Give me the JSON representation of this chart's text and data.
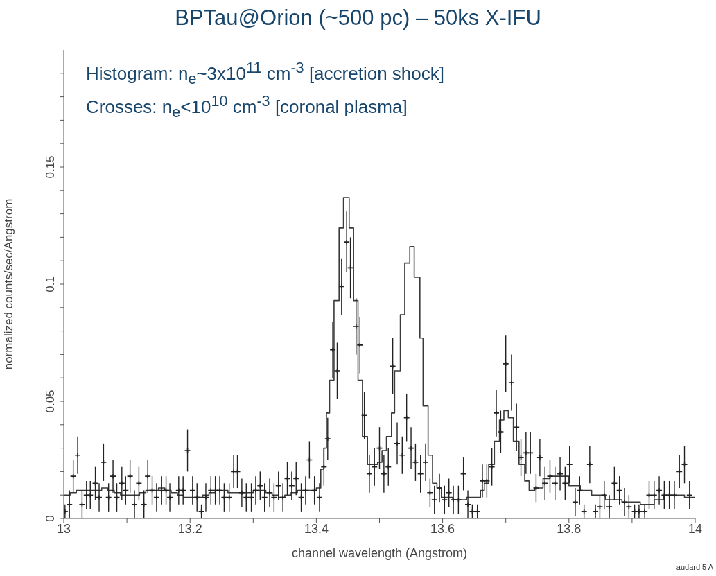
{
  "chart_data": {
    "type": "step",
    "title": "BPTau@Orion (~500 pc) – 50ks X-IFU",
    "xlabel": "channel wavelength (Angstrom)",
    "ylabel": "normalized counts/sec/Angstrom",
    "annotations": [
      "Histogram: n$_{e}$~3x10$^{11}$ cm$^{-3}$ [accretion shock]",
      "Crosses: n$_{e}$<10$^{10}$ cm$^{-3}$ [coronal plasma]",
      "audard 5 A"
    ],
    "xlim": [
      13,
      14
    ],
    "xticks": [
      13,
      {
        "value": 13.1,
        "label": null
      },
      13.2,
      {
        "value": 13.3,
        "label": null
      },
      13.4,
      {
        "value": 13.5,
        "label": null
      },
      13.6,
      {
        "value": 13.7,
        "label": null
      },
      13.8,
      {
        "value": 13.9,
        "label": null
      },
      14
    ],
    "ylim": [
      0,
      0.2
    ],
    "yticks": [
      0,
      {
        "value": 0.01,
        "label": null
      },
      {
        "value": 0.02,
        "label": null
      },
      {
        "value": 0.03,
        "label": null
      },
      {
        "value": 0.04,
        "label": null
      },
      0.05,
      {
        "value": 0.06,
        "label": null
      },
      {
        "value": 0.07,
        "label": null
      },
      {
        "value": 0.08,
        "label": null
      },
      {
        "value": 0.09,
        "label": null
      },
      0.1,
      {
        "value": 0.11,
        "label": null
      },
      {
        "value": 0.12,
        "label": null
      },
      {
        "value": 0.13,
        "label": null
      },
      {
        "value": 0.14,
        "label": null
      },
      0.15,
      {
        "value": 0.16,
        "label": null
      },
      {
        "value": 0.17,
        "label": null
      },
      {
        "value": 0.18,
        "label": null
      },
      {
        "value": 0.19,
        "label": null
      }
    ],
    "series": [
      {
        "color": "#3a3a3a",
        "x": [
          13.0,
          13.01,
          13.02,
          13.03,
          13.04,
          13.05,
          13.06,
          13.07,
          13.08,
          13.09,
          13.1,
          13.11,
          13.12,
          13.13,
          13.14,
          13.15,
          13.16,
          13.17,
          13.18,
          13.19,
          13.2,
          13.21,
          13.22,
          13.23,
          13.24,
          13.25,
          13.26,
          13.27,
          13.28,
          13.29,
          13.3,
          13.31,
          13.32,
          13.33,
          13.34,
          13.35,
          13.36,
          13.37,
          13.38,
          13.39,
          13.4,
          13.407,
          13.412,
          13.416,
          13.421,
          13.428,
          13.436,
          13.443,
          13.452,
          13.459,
          13.466,
          13.473,
          13.481,
          13.488,
          13.497,
          13.504,
          13.511,
          13.519,
          13.524,
          13.533,
          13.54,
          13.548,
          13.555,
          13.564,
          13.569,
          13.577,
          13.584,
          13.591,
          13.598,
          13.616,
          13.638,
          13.66,
          13.666,
          13.673,
          13.682,
          13.69,
          13.697,
          13.704,
          13.712,
          13.721,
          13.73,
          13.737,
          13.746,
          13.759,
          13.77,
          13.785,
          13.8,
          13.818,
          13.836,
          13.858,
          13.884,
          13.913,
          13.935,
          13.95,
          13.964,
          13.983,
          14.0
        ],
        "values": [
          0.01,
          0.011,
          0.012,
          0.012,
          0.012,
          0.012,
          0.013,
          0.012,
          0.011,
          0.01,
          0.01,
          0.01,
          0.011,
          0.012,
          0.012,
          0.013,
          0.012,
          0.011,
          0.01,
          0.009,
          0.009,
          0.009,
          0.01,
          0.011,
          0.012,
          0.012,
          0.011,
          0.011,
          0.011,
          0.011,
          0.012,
          0.012,
          0.011,
          0.01,
          0.009,
          0.01,
          0.011,
          0.012,
          0.012,
          0.012,
          0.013,
          0.021,
          0.03,
          0.045,
          0.059,
          0.093,
          0.124,
          0.137,
          0.124,
          0.093,
          0.059,
          0.035,
          0.023,
          0.023,
          0.024,
          0.029,
          0.035,
          0.045,
          0.063,
          0.087,
          0.109,
          0.116,
          0.103,
          0.077,
          0.048,
          0.027,
          0.015,
          0.013,
          0.009,
          0.008,
          0.009,
          0.012,
          0.015,
          0.023,
          0.033,
          0.042,
          0.046,
          0.043,
          0.033,
          0.023,
          0.016,
          0.012,
          0.013,
          0.017,
          0.018,
          0.018,
          0.014,
          0.012,
          0.01,
          0.008,
          0.007,
          0.006,
          0.008,
          0.01,
          0.01,
          0.009,
          0.009
        ]
      },
      {
        "type": "scatter",
        "color": "#222222",
        "marker": "cross",
        "x": [
          13.002,
          13.009,
          13.015,
          13.022,
          13.029,
          13.036,
          13.042,
          13.05,
          13.056,
          13.063,
          13.071,
          13.078,
          13.084,
          13.092,
          13.098,
          13.105,
          13.112,
          13.119,
          13.127,
          13.133,
          13.14,
          13.147,
          13.155,
          13.162,
          13.168,
          13.182,
          13.189,
          13.196,
          13.204,
          13.211,
          13.218,
          13.225,
          13.233,
          13.24,
          13.247,
          13.254,
          13.262,
          13.269,
          13.275,
          13.282,
          13.289,
          13.297,
          13.304,
          13.311,
          13.318,
          13.326,
          13.333,
          13.34,
          13.347,
          13.354,
          13.361,
          13.368,
          13.376,
          13.383,
          13.389,
          13.397,
          13.405,
          13.412,
          13.418,
          13.426,
          13.433,
          13.44,
          13.448,
          13.454,
          13.463,
          13.469,
          13.476,
          13.484,
          13.492,
          13.5,
          13.507,
          13.514,
          13.521,
          13.528,
          13.536,
          13.543,
          13.55,
          13.557,
          13.565,
          13.573,
          13.58,
          13.587,
          13.595,
          13.603,
          13.61,
          13.617,
          13.625,
          13.633,
          13.64,
          13.647,
          13.655,
          13.663,
          13.67,
          13.678,
          13.685,
          13.692,
          13.7,
          13.709,
          13.717,
          13.724,
          13.732,
          13.739,
          13.748,
          13.754,
          13.762,
          13.77,
          13.778,
          13.786,
          13.794,
          13.801,
          13.81,
          13.817,
          13.824,
          13.833,
          13.842,
          13.849,
          13.856,
          13.864,
          13.872,
          13.88,
          13.888,
          13.895,
          13.904,
          13.911,
          13.92,
          13.927,
          13.935,
          13.943,
          13.951,
          13.959,
          13.967,
          13.975,
          13.983,
          13.991
        ],
        "values": [
          0.003,
          0.006,
          0.018,
          0.027,
          0.006,
          0.01,
          0.01,
          0.015,
          0.009,
          0.024,
          0.009,
          0.018,
          0.009,
          0.015,
          0.012,
          0.018,
          0.006,
          0.015,
          0.006,
          0.018,
          0.012,
          0.009,
          0.012,
          0.012,
          0.009,
          0.012,
          0.012,
          0.029,
          0.012,
          0.009,
          0.003,
          0.009,
          0.012,
          0.012,
          0.012,
          0.009,
          0.009,
          0.02,
          0.02,
          0.011,
          0.009,
          0.009,
          0.012,
          0.014,
          0.009,
          0.011,
          0.009,
          0.014,
          0.009,
          0.017,
          0.014,
          0.017,
          0.009,
          0.012,
          0.025,
          0.012,
          0.009,
          0.022,
          0.034,
          0.072,
          0.063,
          0.099,
          0.118,
          0.107,
          0.082,
          0.074,
          0.044,
          0.019,
          0.022,
          0.03,
          0.019,
          0.022,
          0.065,
          0.032,
          0.027,
          0.043,
          0.03,
          0.024,
          0.019,
          0.024,
          0.011,
          0.008,
          0.013,
          0.008,
          0.011,
          0.008,
          0.008,
          0.019,
          0.006,
          0.003,
          0.003,
          0.016,
          0.016,
          0.022,
          0.045,
          0.037,
          0.066,
          0.058,
          0.039,
          0.026,
          0.028,
          0.028,
          0.013,
          0.026,
          0.015,
          0.018,
          0.015,
          0.019,
          0.015,
          0.023,
          0.007,
          0.012,
          0.003,
          0.023,
          0.003,
          0.005,
          0.01,
          0.005,
          0.015,
          0.012,
          0.007,
          0.005,
          0.003,
          0.003,
          0.003,
          0.01,
          0.01,
          0.012,
          0.01,
          0.01,
          0.01,
          0.02,
          0.023,
          0.01
        ],
        "errors": [
          0.003,
          0.006,
          0.007,
          0.008,
          0.006,
          0.006,
          0.006,
          0.007,
          0.006,
          0.008,
          0.006,
          0.007,
          0.006,
          0.007,
          0.006,
          0.007,
          0.006,
          0.007,
          0.006,
          0.007,
          0.006,
          0.006,
          0.006,
          0.006,
          0.006,
          0.006,
          0.006,
          0.009,
          0.006,
          0.006,
          0.003,
          0.006,
          0.006,
          0.006,
          0.006,
          0.006,
          0.006,
          0.007,
          0.007,
          0.006,
          0.006,
          0.006,
          0.006,
          0.006,
          0.006,
          0.006,
          0.006,
          0.006,
          0.006,
          0.007,
          0.006,
          0.007,
          0.006,
          0.006,
          0.008,
          0.006,
          0.006,
          0.008,
          0.009,
          0.012,
          0.012,
          0.012,
          0.013,
          0.013,
          0.012,
          0.012,
          0.01,
          0.008,
          0.008,
          0.009,
          0.008,
          0.008,
          0.012,
          0.009,
          0.008,
          0.01,
          0.009,
          0.008,
          0.008,
          0.008,
          0.006,
          0.006,
          0.006,
          0.006,
          0.006,
          0.006,
          0.006,
          0.007,
          0.006,
          0.003,
          0.003,
          0.007,
          0.007,
          0.008,
          0.01,
          0.009,
          0.012,
          0.012,
          0.01,
          0.008,
          0.009,
          0.009,
          0.006,
          0.008,
          0.007,
          0.007,
          0.007,
          0.007,
          0.007,
          0.008,
          0.006,
          0.006,
          0.003,
          0.008,
          0.003,
          0.005,
          0.006,
          0.005,
          0.007,
          0.006,
          0.006,
          0.005,
          0.003,
          0.003,
          0.003,
          0.006,
          0.006,
          0.006,
          0.006,
          0.006,
          0.006,
          0.007,
          0.008,
          0.006
        ]
      }
    ]
  }
}
